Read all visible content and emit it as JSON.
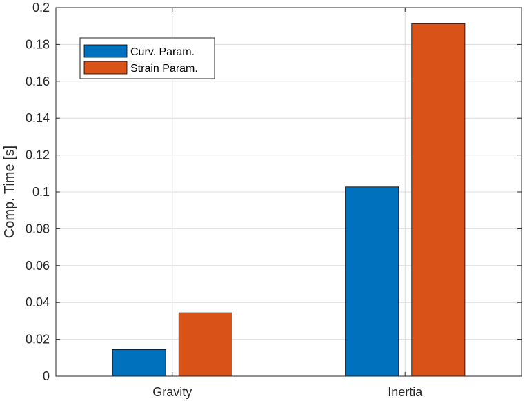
{
  "chart_data": {
    "type": "bar",
    "categories": [
      "Gravity",
      "Inertia"
    ],
    "series": [
      {
        "name": "Curv. Param.",
        "color": "#0072BD",
        "values": [
          0.0145,
          0.1027
        ]
      },
      {
        "name": "Strain Param.",
        "color": "#D95319",
        "values": [
          0.0344,
          0.1913
        ]
      }
    ],
    "xlabel": "",
    "ylabel": "Comp. Time [s]",
    "ylim": [
      0,
      0.2
    ],
    "yticks": [
      "0",
      "0.02",
      "0.04",
      "0.06",
      "0.08",
      "0.1",
      "0.12",
      "0.14",
      "0.16",
      "0.18",
      "0.2"
    ],
    "grid": true,
    "legend_position": "top-left"
  }
}
